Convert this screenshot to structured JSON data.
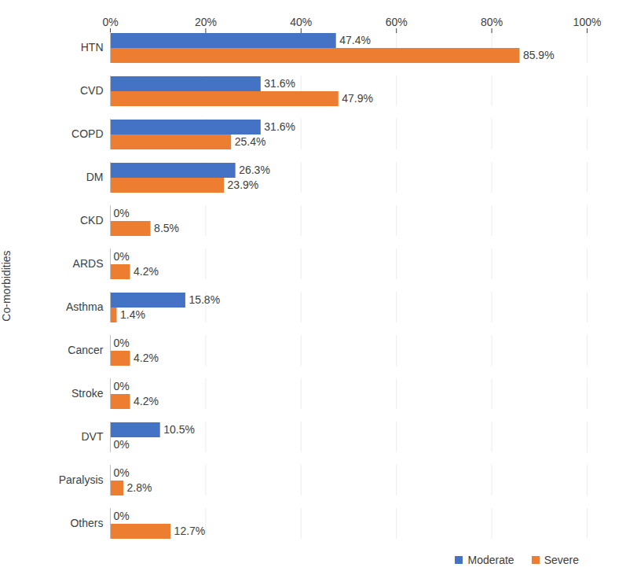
{
  "chart_data": {
    "type": "bar",
    "orientation": "horizontal",
    "y_label": "Co-morbidities",
    "categories": [
      "HTN",
      "CVD",
      "COPD",
      "DM",
      "CKD",
      "ARDS",
      "Asthma",
      "Cancer",
      "Stroke",
      "DVT",
      "Paralysis",
      "Others"
    ],
    "series": [
      {
        "name": "Moderate",
        "color": "#4472c4",
        "values": [
          47.4,
          31.6,
          31.6,
          26.3,
          0,
          0,
          15.8,
          0,
          0,
          10.5,
          0,
          0
        ],
        "value_labels": [
          "47.4%",
          "31.6%",
          "31.6%",
          "26.3%",
          "0%",
          "0%",
          "15.8%",
          "0%",
          "0%",
          "10.5%",
          "0%",
          "0%"
        ]
      },
      {
        "name": "Severe",
        "color": "#ed7d31",
        "values": [
          85.9,
          47.9,
          25.4,
          23.9,
          8.5,
          4.2,
          1.4,
          4.2,
          4.2,
          0,
          2.8,
          12.7
        ],
        "value_labels": [
          "85.9%",
          "47.9%",
          "25.4%",
          "23.9%",
          "8.5%",
          "4.2%",
          "1.4%",
          "4.2%",
          "4.2%",
          "0%",
          "2.8%",
          "12.7%"
        ]
      }
    ],
    "xlim": [
      0,
      100
    ],
    "xticks": [
      {
        "value": 0,
        "label": "0%"
      },
      {
        "value": 20,
        "label": "20%"
      },
      {
        "value": 40,
        "label": "40%"
      },
      {
        "value": 60,
        "label": "60%"
      },
      {
        "value": 80,
        "label": "80%"
      },
      {
        "value": 100,
        "label": "100%"
      }
    ],
    "grid": true,
    "data_labels": true,
    "legend": "lower right"
  }
}
